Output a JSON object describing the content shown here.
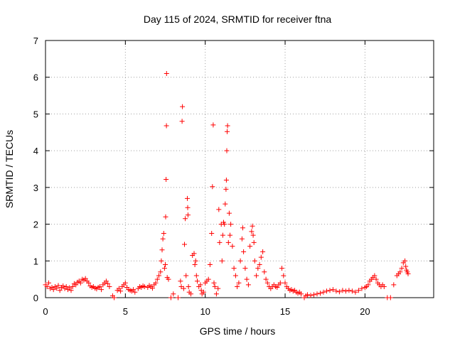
{
  "chart_data": {
    "type": "scatter",
    "title": "Day 115 of 2024, SRMTID for receiver ftna",
    "xlabel": "GPS time / hours",
    "ylabel": "SRMTID / TECUs",
    "xlim": [
      0,
      24.3
    ],
    "ylim": [
      0,
      7
    ],
    "xticks": [
      0,
      5,
      10,
      15,
      20
    ],
    "yticks": [
      0,
      1,
      2,
      3,
      4,
      5,
      6,
      7
    ],
    "grid": true,
    "marker_color": "#ff0000",
    "series": [
      {
        "name": "ftna",
        "marker": "plus",
        "points": [
          [
            0.0,
            0.35
          ],
          [
            0.1,
            0.3
          ],
          [
            0.2,
            0.4
          ],
          [
            0.3,
            0.25
          ],
          [
            0.4,
            0.28
          ],
          [
            0.5,
            0.22
          ],
          [
            0.6,
            0.3
          ],
          [
            0.7,
            0.26
          ],
          [
            0.8,
            0.33
          ],
          [
            0.9,
            0.2
          ],
          [
            1.0,
            0.28
          ],
          [
            1.1,
            0.32
          ],
          [
            1.2,
            0.25
          ],
          [
            1.3,
            0.3
          ],
          [
            1.4,
            0.22
          ],
          [
            1.5,
            0.27
          ],
          [
            1.6,
            0.2
          ],
          [
            1.7,
            0.3
          ],
          [
            1.8,
            0.38
          ],
          [
            1.9,
            0.35
          ],
          [
            2.0,
            0.42
          ],
          [
            2.1,
            0.45
          ],
          [
            2.2,
            0.4
          ],
          [
            2.3,
            0.5
          ],
          [
            2.4,
            0.48
          ],
          [
            2.5,
            0.52
          ],
          [
            2.6,
            0.45
          ],
          [
            2.7,
            0.4
          ],
          [
            2.8,
            0.32
          ],
          [
            2.9,
            0.28
          ],
          [
            3.0,
            0.3
          ],
          [
            3.1,
            0.26
          ],
          [
            3.2,
            0.24
          ],
          [
            3.3,
            0.28
          ],
          [
            3.4,
            0.3
          ],
          [
            3.5,
            0.22
          ],
          [
            3.6,
            0.35
          ],
          [
            3.7,
            0.4
          ],
          [
            3.8,
            0.45
          ],
          [
            3.9,
            0.38
          ],
          [
            4.0,
            0.3
          ],
          [
            4.2,
            0.05
          ],
          [
            4.3,
            0.0
          ],
          [
            4.5,
            0.2
          ],
          [
            4.6,
            0.25
          ],
          [
            4.7,
            0.18
          ],
          [
            4.8,
            0.3
          ],
          [
            4.9,
            0.35
          ],
          [
            5.0,
            0.4
          ],
          [
            5.1,
            0.28
          ],
          [
            5.2,
            0.22
          ],
          [
            5.3,
            0.2
          ],
          [
            5.4,
            0.18
          ],
          [
            5.5,
            0.22
          ],
          [
            5.6,
            0.15
          ],
          [
            5.8,
            0.25
          ],
          [
            5.9,
            0.3
          ],
          [
            6.0,
            0.28
          ],
          [
            6.1,
            0.32
          ],
          [
            6.2,
            0.3
          ],
          [
            6.4,
            0.28
          ],
          [
            6.5,
            0.33
          ],
          [
            6.6,
            0.3
          ],
          [
            6.7,
            0.26
          ],
          [
            6.8,
            0.35
          ],
          [
            6.9,
            0.4
          ],
          [
            7.0,
            0.5
          ],
          [
            7.1,
            0.6
          ],
          [
            7.2,
            0.7
          ],
          [
            7.25,
            1.0
          ],
          [
            7.3,
            1.3
          ],
          [
            7.35,
            1.6
          ],
          [
            7.4,
            1.75
          ],
          [
            7.45,
            0.8
          ],
          [
            7.5,
            0.9
          ],
          [
            7.52,
            2.2
          ],
          [
            7.55,
            3.22
          ],
          [
            7.57,
            4.68
          ],
          [
            7.58,
            6.1
          ],
          [
            7.62,
            0.55
          ],
          [
            7.7,
            0.5
          ],
          [
            7.85,
            0.0
          ],
          [
            8.0,
            0.1
          ],
          [
            8.3,
            0.0
          ],
          [
            8.45,
            0.45
          ],
          [
            8.5,
            0.3
          ],
          [
            8.55,
            4.8
          ],
          [
            8.57,
            5.2
          ],
          [
            8.65,
            0.25
          ],
          [
            8.7,
            1.45
          ],
          [
            8.75,
            2.15
          ],
          [
            8.8,
            0.6
          ],
          [
            8.88,
            2.7
          ],
          [
            8.9,
            2.45
          ],
          [
            8.92,
            2.25
          ],
          [
            8.95,
            0.3
          ],
          [
            9.0,
            0.15
          ],
          [
            9.1,
            0.1
          ],
          [
            9.2,
            1.15
          ],
          [
            9.3,
            1.2
          ],
          [
            9.35,
            0.9
          ],
          [
            9.4,
            1.0
          ],
          [
            9.45,
            0.6
          ],
          [
            9.5,
            0.45
          ],
          [
            9.6,
            0.3
          ],
          [
            9.7,
            0.35
          ],
          [
            9.75,
            0.2
          ],
          [
            9.8,
            0.1
          ],
          [
            9.9,
            0.15
          ],
          [
            10.0,
            0.4
          ],
          [
            10.1,
            0.45
          ],
          [
            10.2,
            0.5
          ],
          [
            10.3,
            0.9
          ],
          [
            10.4,
            1.75
          ],
          [
            10.45,
            3.02
          ],
          [
            10.5,
            4.7
          ],
          [
            10.55,
            0.4
          ],
          [
            10.6,
            0.3
          ],
          [
            10.7,
            0.1
          ],
          [
            10.8,
            0.25
          ],
          [
            10.85,
            2.4
          ],
          [
            10.9,
            1.5
          ],
          [
            11.0,
            2.0
          ],
          [
            11.05,
            1.0
          ],
          [
            11.1,
            1.7
          ],
          [
            11.15,
            2.05
          ],
          [
            11.2,
            2.0
          ],
          [
            11.25,
            2.55
          ],
          [
            11.3,
            2.95
          ],
          [
            11.32,
            3.2
          ],
          [
            11.35,
            4.0
          ],
          [
            11.37,
            4.52
          ],
          [
            11.4,
            4.68
          ],
          [
            11.45,
            1.5
          ],
          [
            11.5,
            2.3
          ],
          [
            11.55,
            1.7
          ],
          [
            11.6,
            2.0
          ],
          [
            11.7,
            1.4
          ],
          [
            11.8,
            0.8
          ],
          [
            11.9,
            0.6
          ],
          [
            12.0,
            0.3
          ],
          [
            12.1,
            0.4
          ],
          [
            12.2,
            1.0
          ],
          [
            12.3,
            1.6
          ],
          [
            12.35,
            1.9
          ],
          [
            12.4,
            1.25
          ],
          [
            12.5,
            0.8
          ],
          [
            12.6,
            0.5
          ],
          [
            12.7,
            0.35
          ],
          [
            12.8,
            1.4
          ],
          [
            12.9,
            1.8
          ],
          [
            12.95,
            1.95
          ],
          [
            13.0,
            1.7
          ],
          [
            13.05,
            1.5
          ],
          [
            13.1,
            1.0
          ],
          [
            13.2,
            0.6
          ],
          [
            13.3,
            0.8
          ],
          [
            13.4,
            0.9
          ],
          [
            13.5,
            1.1
          ],
          [
            13.6,
            1.25
          ],
          [
            13.7,
            0.7
          ],
          [
            13.8,
            0.5
          ],
          [
            13.9,
            0.4
          ],
          [
            14.0,
            0.3
          ],
          [
            14.1,
            0.25
          ],
          [
            14.2,
            0.3
          ],
          [
            14.3,
            0.35
          ],
          [
            14.4,
            0.3
          ],
          [
            14.5,
            0.28
          ],
          [
            14.6,
            0.35
          ],
          [
            14.7,
            0.4
          ],
          [
            14.8,
            0.8
          ],
          [
            14.9,
            0.6
          ],
          [
            15.0,
            0.4
          ],
          [
            15.1,
            0.3
          ],
          [
            15.2,
            0.25
          ],
          [
            15.3,
            0.2
          ],
          [
            15.4,
            0.22
          ],
          [
            15.5,
            0.18
          ],
          [
            15.6,
            0.2
          ],
          [
            15.7,
            0.15
          ],
          [
            15.8,
            0.12
          ],
          [
            15.9,
            0.15
          ],
          [
            16.0,
            0.1
          ],
          [
            16.2,
            0.0
          ],
          [
            16.3,
            0.05
          ],
          [
            16.4,
            0.08
          ],
          [
            16.6,
            0.06
          ],
          [
            16.8,
            0.08
          ],
          [
            17.0,
            0.1
          ],
          [
            17.2,
            0.12
          ],
          [
            17.4,
            0.15
          ],
          [
            17.6,
            0.18
          ],
          [
            17.8,
            0.2
          ],
          [
            18.0,
            0.22
          ],
          [
            18.2,
            0.18
          ],
          [
            18.4,
            0.16
          ],
          [
            18.6,
            0.2
          ],
          [
            18.8,
            0.18
          ],
          [
            19.0,
            0.2
          ],
          [
            19.2,
            0.18
          ],
          [
            19.4,
            0.15
          ],
          [
            19.6,
            0.2
          ],
          [
            19.8,
            0.25
          ],
          [
            20.0,
            0.28
          ],
          [
            20.1,
            0.3
          ],
          [
            20.2,
            0.35
          ],
          [
            20.3,
            0.45
          ],
          [
            20.4,
            0.5
          ],
          [
            20.5,
            0.55
          ],
          [
            20.6,
            0.6
          ],
          [
            20.7,
            0.5
          ],
          [
            20.8,
            0.4
          ],
          [
            20.9,
            0.35
          ],
          [
            21.0,
            0.3
          ],
          [
            21.1,
            0.35
          ],
          [
            21.2,
            0.3
          ],
          [
            21.4,
            0.0
          ],
          [
            21.6,
            0.0
          ],
          [
            21.8,
            0.35
          ],
          [
            22.0,
            0.6
          ],
          [
            22.1,
            0.65
          ],
          [
            22.2,
            0.7
          ],
          [
            22.3,
            0.8
          ],
          [
            22.4,
            0.95
          ],
          [
            22.5,
            1.0
          ],
          [
            22.55,
            0.85
          ],
          [
            22.6,
            0.75
          ],
          [
            22.65,
            0.7
          ],
          [
            22.7,
            0.65
          ]
        ]
      }
    ]
  }
}
